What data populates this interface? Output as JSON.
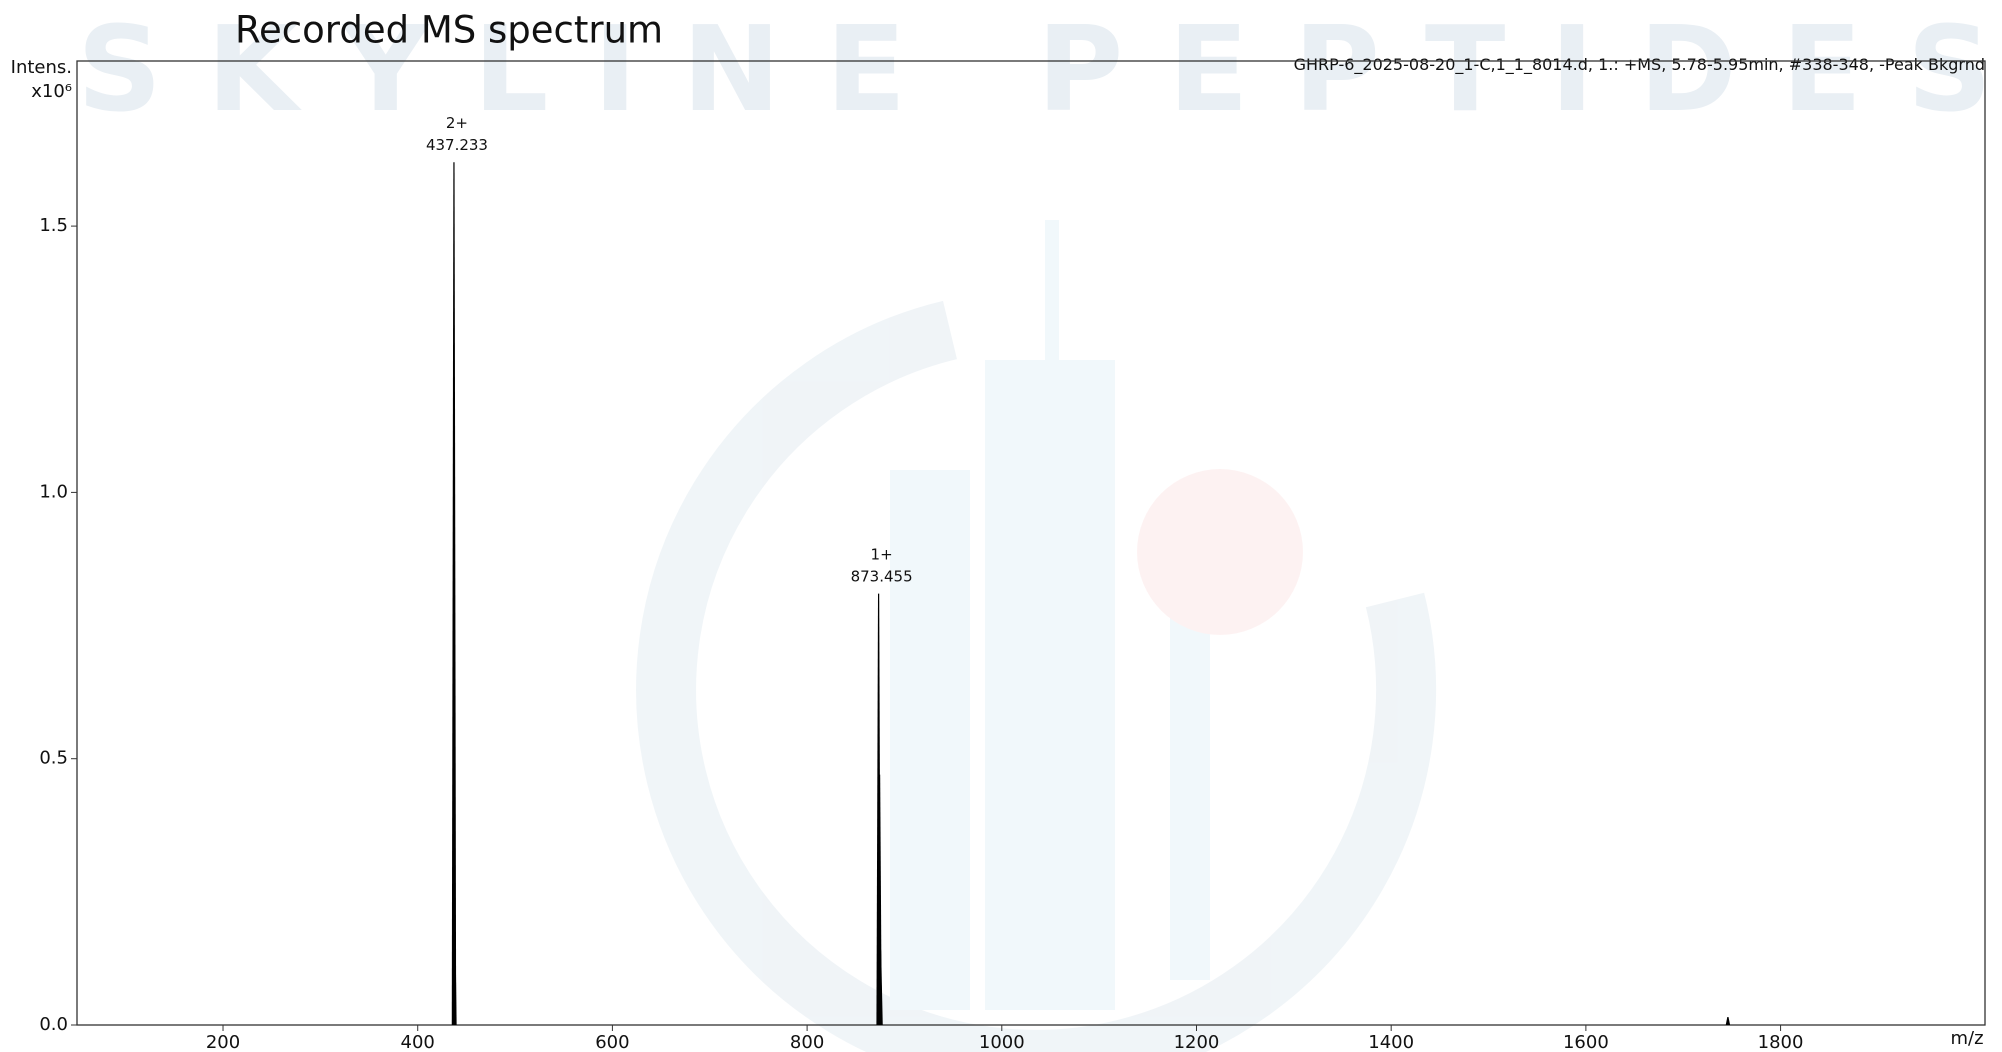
{
  "chart_data": {
    "type": "spectrum",
    "title": "Recorded MS spectrum",
    "watermark": "SKYLINE PEPTIDES",
    "info": "GHRP-6_2025-08-20_1-C,1_1_8014.d, 1.: +MS, 5.78-5.95min, #338-348, -Peak Bkgrnd",
    "y_label": "Intens.",
    "y_multiplier": "x10⁶",
    "x_label": "m/z",
    "x": [
      437.233,
      437.734,
      873.455,
      874.458,
      875.46,
      1745.9
    ],
    "values": [
      1.62,
      0.24,
      0.81,
      0.47,
      0.14,
      0.015
    ],
    "charges": [
      "2+",
      null,
      "1+",
      null,
      null,
      null
    ],
    "color": "#000000",
    "xlim": [
      50,
      2010
    ],
    "ylim": [
      0,
      1.81
    ],
    "xticks": [
      200,
      400,
      600,
      800,
      1000,
      1200,
      1400,
      1600,
      1800
    ],
    "yticks": [
      {
        "value": 0,
        "label": "0.0"
      },
      {
        "value": 0.5,
        "label": "0.5"
      },
      {
        "value": 1,
        "label": "1.0"
      },
      {
        "value": 1.5,
        "label": "1.5"
      }
    ]
  }
}
